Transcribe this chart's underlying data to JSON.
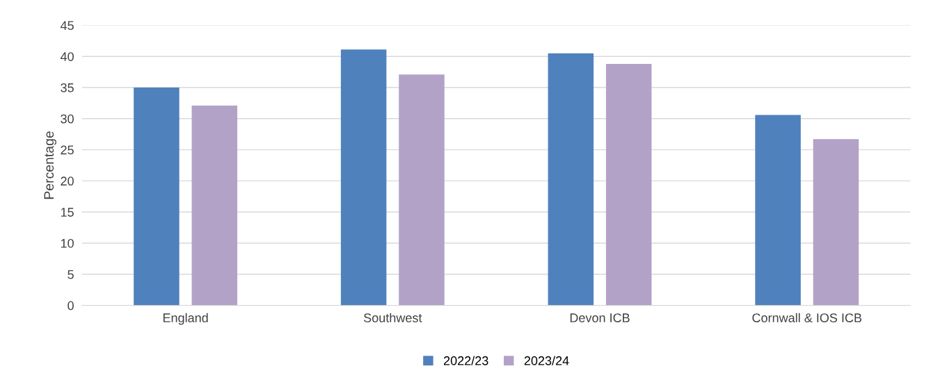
{
  "chart_data": {
    "type": "bar",
    "ylabel": "Percentage",
    "categories": [
      "England",
      "Southwest",
      "Devon ICB",
      "Cornwall & IOS ICB"
    ],
    "series": [
      {
        "name": "2022/23",
        "color": "#4f81bd",
        "values": [
          35.0,
          41.1,
          40.5,
          30.6
        ]
      },
      {
        "name": "2023/24",
        "color": "#b3a2c7",
        "values": [
          32.1,
          37.1,
          38.8,
          26.7
        ]
      }
    ],
    "ylim": [
      0,
      45
    ],
    "yticks": [
      0,
      5,
      10,
      15,
      20,
      25,
      30,
      35,
      40,
      45
    ],
    "grid": "y",
    "legend": "bottom"
  }
}
